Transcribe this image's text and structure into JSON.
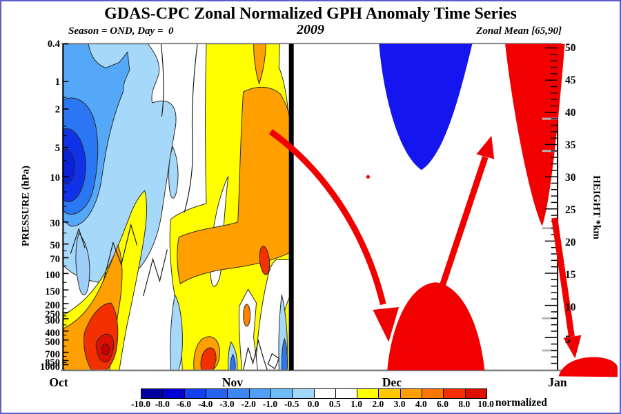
{
  "header": {
    "title": "GDAS-CPC Zonal Normalized GPH Anomaly Time Series",
    "season_day": "Season = OND, Day =  0",
    "year": "2009",
    "zonal_mean": "Zonal Mean [65,90]"
  },
  "axes": {
    "y_left": {
      "label": "PRESSURE (hPa)",
      "ticks": [
        "0.4",
        "1",
        "2",
        "5",
        "10",
        "30",
        "50",
        "70",
        "100",
        "150",
        "200",
        "250",
        "300",
        "400",
        "500",
        "700",
        "850",
        "1000"
      ]
    },
    "y_right": {
      "label": "HEIGHT *km",
      "ticks": [
        "50",
        "45",
        "40",
        "35",
        "30",
        "25",
        "20",
        "15",
        "10",
        "5"
      ]
    },
    "x": {
      "months": [
        "Oct",
        "Nov",
        "Dec",
        "Jan"
      ]
    }
  },
  "colorbar": {
    "unit_label": "normalized",
    "edge_labels": [
      "-10.0",
      "-8.0",
      "-6.0",
      "-4.0",
      "-3.0",
      "-2.0",
      "-1.0",
      "-0.5",
      "0.0",
      "0.5",
      "1.0",
      "2.0",
      "3.0",
      "4.0",
      "6.0",
      "8.0",
      "10.0"
    ],
    "colors": [
      "#0000A0",
      "#0000D2",
      "#1441F0",
      "#2862F2",
      "#3C87F5",
      "#50A0F7",
      "#6EBDF8",
      "#A0D7FA",
      "#FFFFFF",
      "#FFFFFF",
      "#FFFF00",
      "#FFC800",
      "#FFA000",
      "#FF7800",
      "#F52D00",
      "#DC0F00"
    ]
  },
  "chart_data": {
    "type": "contour",
    "title": "GDAS-CPC Zonal Normalized GPH Anomaly Time Series",
    "subtitle": {
      "season": "OND",
      "day": 0,
      "year": 2009,
      "zonal_mean_lat_band": [
        65,
        90
      ]
    },
    "x_axis": {
      "ticks": [
        "Oct",
        "Nov",
        "Dec",
        "Jan"
      ]
    },
    "y_axis_left": {
      "label": "PRESSURE (hPa)",
      "scale": "log",
      "levels_hpa": [
        0.4,
        1,
        2,
        5,
        10,
        30,
        50,
        70,
        100,
        150,
        200,
        250,
        300,
        400,
        500,
        700,
        850,
        1000
      ]
    },
    "y_axis_right": {
      "label": "HEIGHT *km",
      "range_km": [
        0,
        51
      ],
      "labeled_every_km": 5
    },
    "fill_levels_normalized": [
      -10,
      -8,
      -6,
      -4,
      -3,
      -2,
      -1,
      -0.5,
      0,
      0.5,
      1,
      2,
      3,
      4,
      6,
      8,
      10
    ],
    "units": "normalized",
    "day0_line": "thick black vertical line at Day 0 (mid-November)",
    "features": [
      {
        "sign": "negative",
        "value_range": "-1 to -6",
        "where": "early-to-mid October stratosphere 0.4-30 hPa, nested blue contours with core near 5-10 hPa"
      },
      {
        "sign": "negative",
        "value_range": "-0.5 to -1",
        "where": "thin vertical slivers: late October mid-levels, lower troposphere mid-November, and hugging the day-0 line"
      },
      {
        "sign": "positive",
        "value_range": "+1 to +4",
        "where": "continuous yellow/orange column from 0.4 to 1000 hPa through early-to-mid November up to the day-0 line"
      },
      {
        "sign": "positive",
        "value_range": "+4 to +10",
        "where": "mid-October troposphere 400-850 hPa, red core near 700 hPa"
      },
      {
        "sign": "positive",
        "value_range": "+6 to +8",
        "where": "small spots mid-November near 150-250 hPa and near 500 hPa"
      },
      {
        "sign": "negative",
        "value_range": "solid blue blob (schematic)",
        "where": "early-to-mid December upper stratosphere 0.4-10 hPa"
      },
      {
        "sign": "positive",
        "value_range": "solid red dome (schematic)",
        "where": "December troposphere below about 150 hPa"
      },
      {
        "sign": "positive",
        "value_range": "solid red wedge (schematic)",
        "where": "late December-January stratosphere down to about 23 km at right edge"
      },
      {
        "sign": "positive",
        "value_range": "small red dot",
        "where": "early December near 10 hPa"
      },
      {
        "sign": "positive",
        "value_range": "solid red patch (schematic)",
        "where": "bottom-right corner near the surface in January"
      }
    ],
    "annotations": [
      {
        "type": "arrow",
        "color": "#F20000",
        "desc": "curved arrow from the stratospheric anomaly at day 0 downward into the December troposphere"
      },
      {
        "type": "arrow",
        "color": "#F20000",
        "desc": "straight arrow from the red tropospheric dome up toward the upper-stratospheric red wedge"
      },
      {
        "type": "arrow",
        "color": "#F20000",
        "desc": "arrow descending along the right edge from about 25 km to the surface in January"
      }
    ]
  }
}
